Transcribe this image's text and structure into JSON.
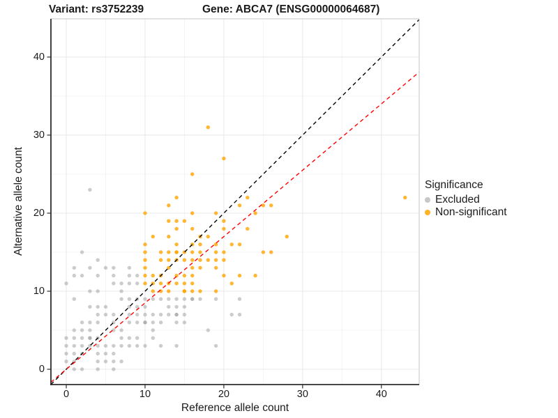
{
  "titles": {
    "left": "Variant: rs3752239",
    "right": "Gene: ABCA7 (ENSG00000064687)"
  },
  "axes": {
    "x_label": "Reference allele count",
    "y_label": "Alternative allele count"
  },
  "legend": {
    "title": "Significance",
    "items": [
      {
        "label": "Excluded",
        "key": "excluded"
      },
      {
        "label": "Non-significant",
        "key": "non_significant"
      }
    ]
  },
  "colors": {
    "excluded": "#999999",
    "non_significant": "#FFA500",
    "identity_line": "#000000",
    "ratio_line": "#FF0000",
    "grid_major": "#E8E8E8",
    "grid_minor": "#F4F4F4",
    "axis_line": "#2E2E2E",
    "panel_border": "#C4C4C4",
    "text": "#1A1A1A"
  },
  "chart_data": {
    "type": "scatter",
    "title": "Variant: rs3752239 / Gene: ABCA7 (ENSG00000064687)",
    "xlabel": "Reference allele count",
    "ylabel": "Alternative allele count",
    "xlim": [
      -1.95,
      44.8
    ],
    "ylim": [
      -1.96,
      44.9
    ],
    "xticks": [
      0,
      10,
      20,
      30,
      40
    ],
    "yticks": [
      0,
      10,
      20,
      30,
      40
    ],
    "minor_xticks": [
      5,
      15,
      25,
      35,
      45
    ],
    "minor_yticks": [
      5,
      15,
      25,
      35,
      45
    ],
    "grid": true,
    "legend_position": "right",
    "point_radius": 2.7,
    "point_opacity": {
      "excluded": 0.5,
      "non_significant": 0.8
    },
    "series": [
      {
        "name": "Excluded",
        "key": "excluded",
        "points": [
          [
            1,
            0
          ],
          [
            2,
            0
          ],
          [
            4,
            0
          ],
          [
            6,
            0
          ],
          [
            0,
            1
          ],
          [
            1,
            1
          ],
          [
            4,
            1
          ],
          [
            5,
            1
          ],
          [
            6,
            1
          ],
          [
            7,
            1
          ],
          [
            0,
            2
          ],
          [
            1,
            2
          ],
          [
            2,
            2
          ],
          [
            4,
            2
          ],
          [
            5,
            2
          ],
          [
            6,
            2
          ],
          [
            0,
            3
          ],
          [
            1,
            3
          ],
          [
            2,
            3
          ],
          [
            3,
            3
          ],
          [
            4,
            3
          ],
          [
            5,
            3
          ],
          [
            6,
            3
          ],
          [
            7,
            3
          ],
          [
            8,
            3
          ],
          [
            9,
            3
          ],
          [
            10,
            3
          ],
          [
            12,
            3
          ],
          [
            14,
            3
          ],
          [
            19,
            3
          ],
          [
            0,
            4
          ],
          [
            1,
            4
          ],
          [
            2,
            4
          ],
          [
            3,
            4
          ],
          [
            3,
            4
          ],
          [
            4,
            4
          ],
          [
            7,
            4
          ],
          [
            8,
            4
          ],
          [
            9,
            4
          ],
          [
            11,
            4
          ],
          [
            1,
            5
          ],
          [
            2,
            5
          ],
          [
            3,
            5
          ],
          [
            6,
            5
          ],
          [
            7,
            5
          ],
          [
            11,
            5
          ],
          [
            18,
            5
          ],
          [
            2,
            6
          ],
          [
            3,
            6
          ],
          [
            4,
            6
          ],
          [
            6,
            6
          ],
          [
            8,
            6
          ],
          [
            9,
            6
          ],
          [
            10,
            6
          ],
          [
            10,
            6
          ],
          [
            11,
            6
          ],
          [
            12,
            6
          ],
          [
            14,
            6
          ],
          [
            15,
            6
          ],
          [
            4,
            7
          ],
          [
            5,
            7
          ],
          [
            6,
            7
          ],
          [
            8,
            7
          ],
          [
            9,
            7
          ],
          [
            10,
            7
          ],
          [
            11,
            7
          ],
          [
            12,
            7
          ],
          [
            13,
            7
          ],
          [
            14,
            7
          ],
          [
            14,
            7
          ],
          [
            15,
            7
          ],
          [
            21,
            7
          ],
          [
            22,
            7
          ],
          [
            3,
            8
          ],
          [
            4,
            8
          ],
          [
            5,
            8
          ],
          [
            8,
            8
          ],
          [
            9,
            8
          ],
          [
            10,
            8
          ],
          [
            13,
            8
          ],
          [
            14,
            8
          ],
          [
            15,
            8
          ],
          [
            1,
            9
          ],
          [
            7,
            9
          ],
          [
            8,
            9
          ],
          [
            9,
            9
          ],
          [
            10,
            9
          ],
          [
            11,
            9
          ],
          [
            12,
            9
          ],
          [
            13,
            9
          ],
          [
            14,
            9
          ],
          [
            15,
            9
          ],
          [
            16,
            9
          ],
          [
            16,
            9
          ],
          [
            17,
            9
          ],
          [
            19,
            9
          ],
          [
            22,
            9
          ],
          [
            3,
            10
          ],
          [
            4,
            10
          ],
          [
            7,
            10
          ],
          [
            0,
            11
          ],
          [
            6,
            11
          ],
          [
            7,
            11
          ],
          [
            8,
            11
          ],
          [
            9,
            11
          ],
          [
            1,
            12
          ],
          [
            2,
            12
          ],
          [
            4,
            12
          ],
          [
            6,
            12
          ],
          [
            8,
            12
          ],
          [
            9,
            12
          ],
          [
            1,
            13
          ],
          [
            3,
            13
          ],
          [
            5,
            13
          ],
          [
            6,
            13
          ],
          [
            8,
            13
          ],
          [
            4,
            14
          ],
          [
            2,
            15
          ],
          [
            3,
            23
          ]
        ]
      },
      {
        "name": "Non-significant",
        "key": "non_significant",
        "points": [
          [
            11,
            10
          ],
          [
            12,
            10
          ],
          [
            13,
            10
          ],
          [
            15,
            10
          ],
          [
            15,
            10
          ],
          [
            16,
            10
          ],
          [
            17,
            10
          ],
          [
            19,
            10
          ],
          [
            10,
            11
          ],
          [
            11,
            11
          ],
          [
            12,
            11
          ],
          [
            13,
            11
          ],
          [
            14,
            11
          ],
          [
            15,
            11
          ],
          [
            16,
            11
          ],
          [
            21,
            11
          ],
          [
            10,
            12
          ],
          [
            11,
            12
          ],
          [
            12,
            12
          ],
          [
            14,
            12
          ],
          [
            15,
            12
          ],
          [
            16,
            12
          ],
          [
            20,
            12
          ],
          [
            22,
            12
          ],
          [
            24,
            12
          ],
          [
            10,
            13
          ],
          [
            13,
            13
          ],
          [
            16,
            13
          ],
          [
            17,
            13
          ],
          [
            19,
            13
          ],
          [
            10,
            14
          ],
          [
            12,
            14
          ],
          [
            13,
            14
          ],
          [
            14,
            14
          ],
          [
            15,
            14
          ],
          [
            16,
            14
          ],
          [
            17,
            14
          ],
          [
            18,
            14
          ],
          [
            19,
            14
          ],
          [
            20,
            14
          ],
          [
            10,
            15
          ],
          [
            12,
            15
          ],
          [
            13,
            15
          ],
          [
            14,
            15
          ],
          [
            14,
            15
          ],
          [
            15,
            15
          ],
          [
            16,
            15
          ],
          [
            17,
            15
          ],
          [
            19,
            15
          ],
          [
            20,
            15
          ],
          [
            25,
            15
          ],
          [
            26,
            15
          ],
          [
            10,
            16
          ],
          [
            14,
            16
          ],
          [
            16,
            16
          ],
          [
            17,
            16
          ],
          [
            19,
            16
          ],
          [
            21,
            16
          ],
          [
            22,
            16
          ],
          [
            11,
            17
          ],
          [
            13,
            17
          ],
          [
            17,
            17
          ],
          [
            18,
            17
          ],
          [
            28,
            17
          ],
          [
            14,
            18
          ],
          [
            16,
            18
          ],
          [
            20,
            18
          ],
          [
            23,
            18
          ],
          [
            13,
            19
          ],
          [
            14,
            19
          ],
          [
            15,
            19
          ],
          [
            20,
            19
          ],
          [
            10,
            20
          ],
          [
            16,
            20
          ],
          [
            19,
            20
          ],
          [
            24,
            20
          ],
          [
            13,
            21
          ],
          [
            22,
            21
          ],
          [
            25,
            21
          ],
          [
            26,
            21
          ],
          [
            14,
            22
          ],
          [
            23,
            22
          ],
          [
            43,
            22
          ],
          [
            16,
            25
          ],
          [
            20,
            27
          ],
          [
            18,
            31
          ]
        ]
      }
    ],
    "ablines": [
      {
        "name": "identity-line",
        "slope": 1,
        "intercept": 0,
        "style": "dashed",
        "color_key": "identity_line"
      },
      {
        "name": "ratio-line",
        "slope": 0.85,
        "intercept": 0,
        "style": "dashed",
        "color_key": "ratio_line"
      }
    ]
  }
}
